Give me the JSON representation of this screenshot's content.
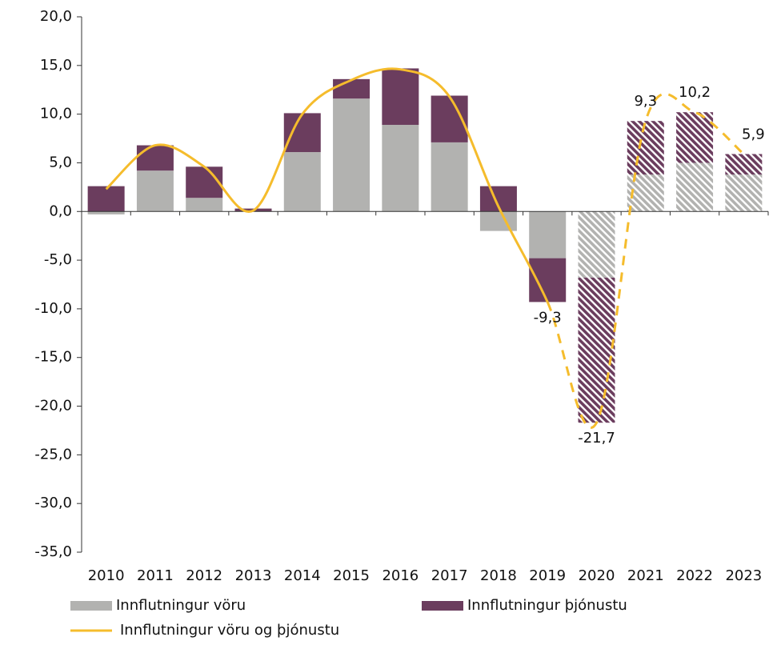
{
  "chart_data": {
    "type": "bar",
    "categories": [
      "2010",
      "2011",
      "2012",
      "2013",
      "2014",
      "2015",
      "2016",
      "2017",
      "2018",
      "2019",
      "2020",
      "2021",
      "2022",
      "2023"
    ],
    "stacked": true,
    "hatched": [
      false,
      false,
      false,
      false,
      false,
      false,
      false,
      false,
      false,
      false,
      true,
      true,
      true,
      true
    ],
    "series": [
      {
        "name": "Innflutningur vöru",
        "type": "bar",
        "color": "#b2b2b0",
        "values": [
          -0.3,
          4.2,
          1.4,
          0.0,
          6.1,
          11.6,
          8.9,
          7.1,
          -2.0,
          -4.8,
          -6.8,
          3.8,
          5.0,
          3.8
        ]
      },
      {
        "name": "Innflutningur þjónustu",
        "type": "bar",
        "color": "#6b3d5e",
        "values": [
          2.6,
          2.6,
          3.2,
          0.3,
          4.0,
          2.0,
          5.8,
          4.8,
          2.6,
          -4.5,
          -14.9,
          5.5,
          5.2,
          2.1
        ]
      },
      {
        "name": "Innflutningur vöru og þjónustu",
        "type": "line",
        "color": "#f5bc2c",
        "values": [
          2.3,
          6.8,
          4.6,
          0.1,
          10.0,
          13.5,
          14.6,
          11.8,
          0.5,
          -9.3,
          -21.7,
          9.3,
          10.2,
          5.9
        ],
        "value_labels": [
          null,
          null,
          null,
          null,
          null,
          null,
          null,
          null,
          null,
          "-9,3",
          "-21,7",
          "9,3",
          "10,2",
          "5,9"
        ]
      }
    ],
    "ylim": [
      -35,
      20
    ],
    "yticks": [
      {
        "value": -35,
        "label": "-35,0"
      },
      {
        "value": -30,
        "label": "-30,0"
      },
      {
        "value": -25,
        "label": "-25,0"
      },
      {
        "value": -20,
        "label": "-20,0"
      },
      {
        "value": -15,
        "label": "-15,0"
      },
      {
        "value": -10,
        "label": "-10,0"
      },
      {
        "value": -5,
        "label": "-5,0"
      },
      {
        "value": 0,
        "label": "0,0"
      },
      {
        "value": 5,
        "label": "5,0"
      },
      {
        "value": 10,
        "label": "10,0"
      },
      {
        "value": 15,
        "label": "15,0"
      },
      {
        "value": 20,
        "label": "20,0"
      }
    ],
    "grid": false,
    "legend": "bottom"
  }
}
